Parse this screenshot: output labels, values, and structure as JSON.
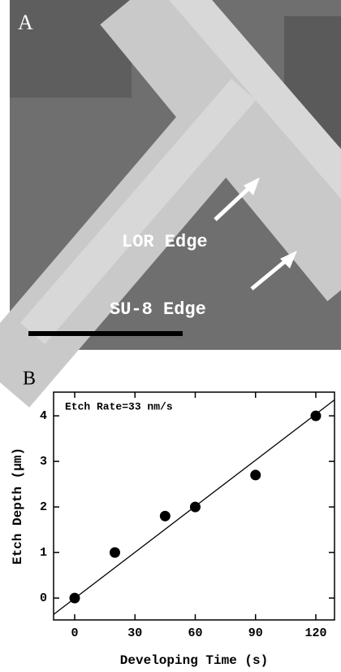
{
  "panel_a": {
    "label": "A",
    "annotations": [
      "LOR Edge",
      "SU-8 Edge"
    ]
  },
  "chart_data": {
    "type": "scatter",
    "label": "B",
    "annotation": "Etch Rate=33 nm/s",
    "x_label": "Developing Time (s)",
    "y_label": "Etch Depth (µm)",
    "x": [
      0,
      20,
      45,
      60,
      90,
      120
    ],
    "values": [
      0,
      1,
      1.8,
      2,
      2.7,
      4
    ],
    "color": "#000000",
    "fit": {
      "x": [
        -10.5,
        129.3
      ],
      "values": [
        -0.36,
        4.35
      ]
    },
    "xlim": [
      -10.5,
      129.3
    ],
    "ylim": [
      -0.48,
      4.52
    ],
    "xticks": [
      0,
      30,
      60,
      90,
      120
    ],
    "yticks": [
      0,
      1,
      2,
      3,
      4
    ]
  }
}
